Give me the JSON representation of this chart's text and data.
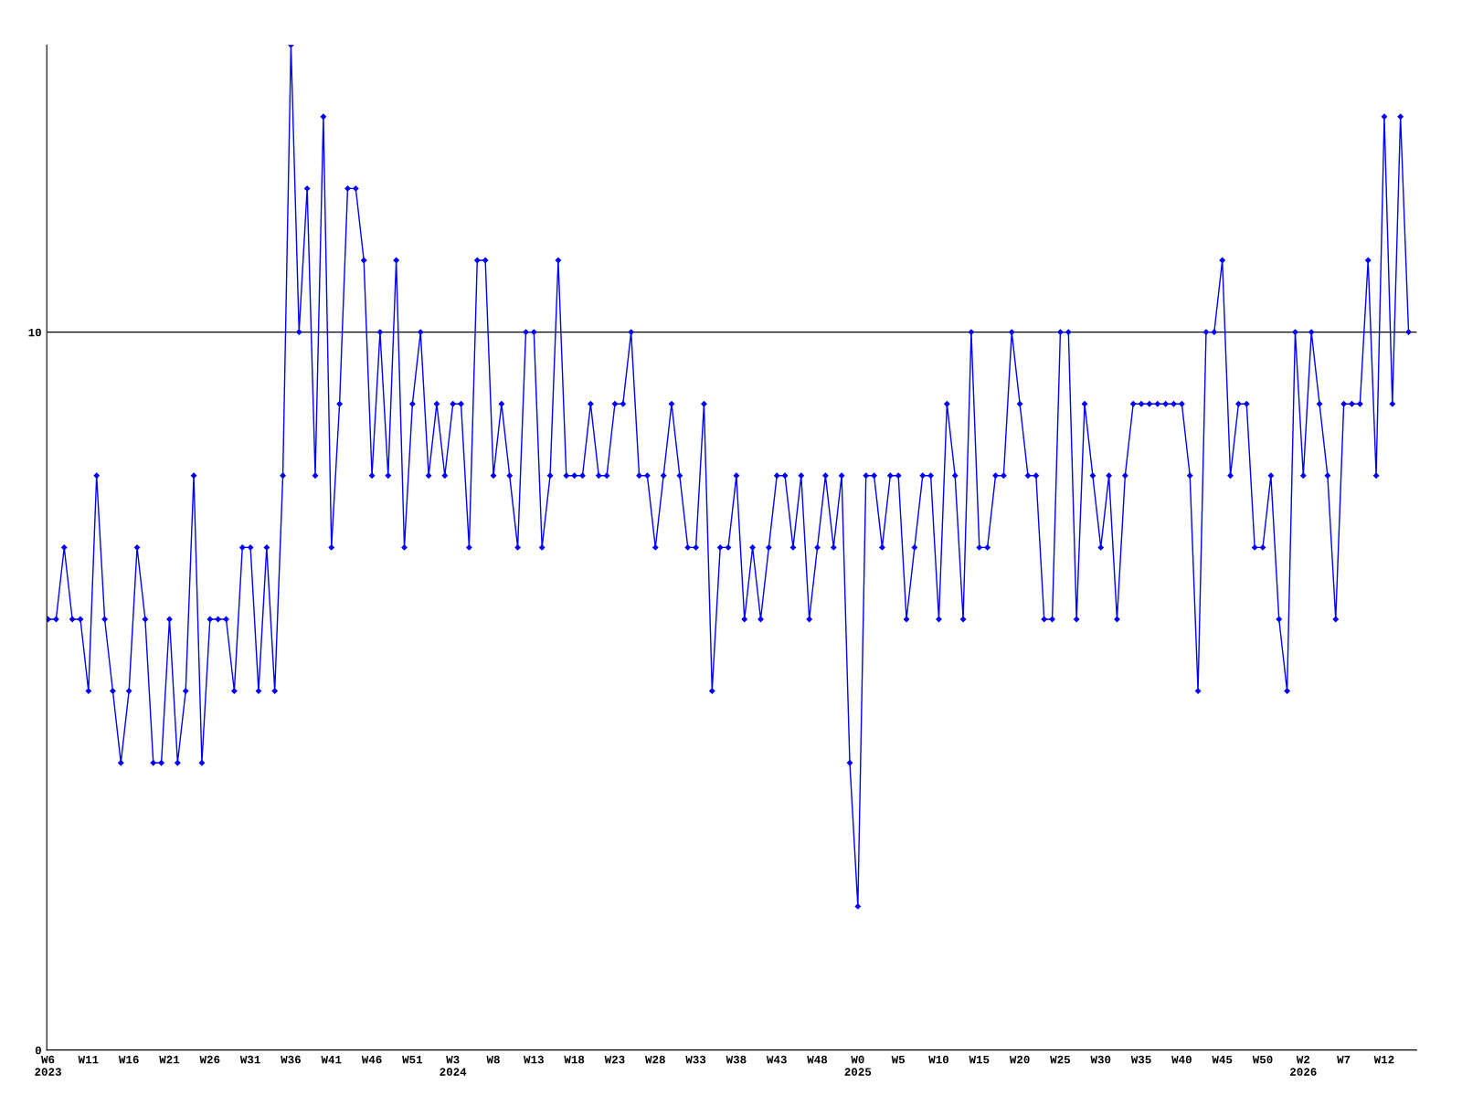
{
  "chart_data": {
    "type": "line",
    "categories": [
      "W6\n2023",
      null,
      null,
      null,
      null,
      "W11",
      null,
      null,
      null,
      null,
      "W16",
      null,
      null,
      null,
      null,
      "W21",
      null,
      null,
      null,
      null,
      "W26",
      null,
      null,
      null,
      null,
      "W31",
      null,
      null,
      null,
      null,
      "W36",
      null,
      null,
      null,
      null,
      "W41",
      null,
      null,
      null,
      null,
      "W46",
      null,
      null,
      null,
      null,
      "W51",
      null,
      null,
      null,
      null,
      "W3\n2024",
      null,
      null,
      null,
      null,
      "W8",
      null,
      null,
      null,
      null,
      "W13",
      null,
      null,
      null,
      null,
      "W18",
      null,
      null,
      null,
      null,
      "W23",
      null,
      null,
      null,
      null,
      "W28",
      null,
      null,
      null,
      null,
      "W33",
      null,
      null,
      null,
      null,
      "W38",
      null,
      null,
      null,
      null,
      "W43",
      null,
      null,
      null,
      null,
      "W48",
      null,
      null,
      null,
      null,
      "W0\n2025",
      null,
      null,
      null,
      null,
      "W5",
      null,
      null,
      null,
      null,
      "W10",
      null,
      null,
      null,
      null,
      "W15",
      null,
      null,
      null,
      null,
      "W20",
      null,
      null,
      null,
      null,
      "W25",
      null,
      null,
      null,
      null,
      "W30",
      null,
      null,
      null,
      null,
      "W35",
      null,
      null,
      null,
      null,
      "W40",
      null,
      null,
      null,
      null,
      "W45",
      null,
      null,
      null,
      null,
      "W50",
      null,
      null,
      null,
      null,
      "W2\n2026",
      null,
      null,
      null,
      null,
      "W7",
      null,
      null,
      null,
      null,
      "W12",
      null,
      null,
      null
    ],
    "series": [
      {
        "color": "#0000ff",
        "values": [
          6,
          6,
          7,
          6,
          6,
          5,
          8,
          6,
          5,
          4,
          5,
          7,
          6,
          4,
          4,
          6,
          4,
          5,
          8,
          4,
          6,
          6,
          6,
          5,
          7,
          7,
          5,
          7,
          5,
          8,
          14,
          10,
          12,
          8,
          13,
          7,
          9,
          12,
          12,
          11,
          8,
          10,
          8,
          11,
          7,
          9,
          10,
          8,
          9,
          8,
          9,
          9,
          7,
          11,
          11,
          8,
          9,
          8,
          7,
          10,
          10,
          7,
          8,
          11,
          8,
          8,
          8,
          9,
          8,
          8,
          9,
          9,
          10,
          8,
          8,
          7,
          8,
          9,
          8,
          7,
          7,
          9,
          5,
          7,
          7,
          8,
          6,
          7,
          6,
          7,
          8,
          8,
          7,
          8,
          6,
          7,
          8,
          7,
          8,
          4,
          2,
          8,
          8,
          7,
          8,
          8,
          6,
          7,
          8,
          8,
          6,
          9,
          8,
          6,
          10,
          7,
          7,
          8,
          8,
          10,
          9,
          8,
          8,
          6,
          6,
          10,
          10,
          6,
          9,
          8,
          7,
          8,
          6,
          8,
          9,
          9,
          9,
          9,
          9,
          9,
          9,
          8,
          5,
          10,
          10,
          11,
          8,
          9,
          9,
          7,
          7,
          8,
          6,
          5,
          10,
          8,
          10,
          9,
          8,
          6,
          9,
          9,
          9,
          11,
          8,
          13,
          9,
          13,
          10
        ]
      }
    ],
    "ylim": [
      0,
      14
    ],
    "yticks": [
      0,
      10
    ],
    "grid": "y",
    "marker": "diamond",
    "line_style": "solid",
    "legend": false
  }
}
